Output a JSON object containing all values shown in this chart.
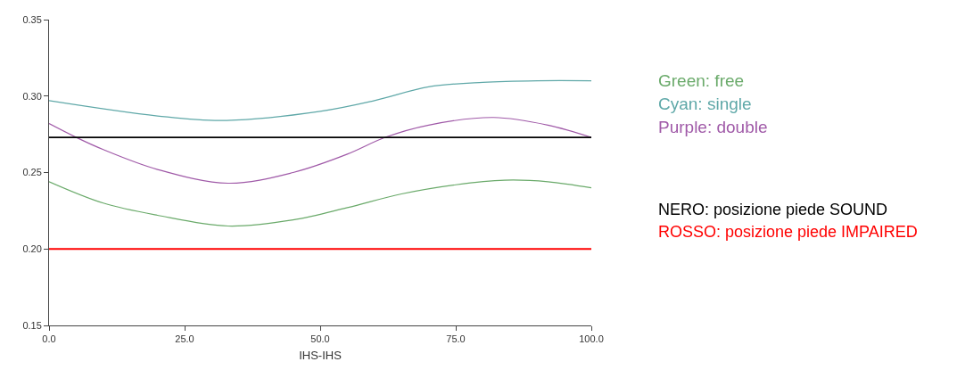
{
  "chart_data": {
    "type": "line",
    "xlabel": "IHS-IHS",
    "xlim": [
      0,
      100
    ],
    "xticks": [
      {
        "value": 0,
        "label": "0.0"
      },
      {
        "value": 25,
        "label": "25.0"
      },
      {
        "value": 50,
        "label": "50.0"
      },
      {
        "value": 75,
        "label": "75.0"
      },
      {
        "value": 100,
        "label": "100.0"
      }
    ],
    "ylim": [
      0.15,
      0.35
    ],
    "yticks": [
      {
        "value": 0.15,
        "label": "0.15"
      },
      {
        "value": 0.2,
        "label": "0.20"
      },
      {
        "value": 0.25,
        "label": "0.25"
      },
      {
        "value": 0.3,
        "label": "0.30"
      },
      {
        "value": 0.35,
        "label": "0.35"
      }
    ],
    "legend": false,
    "marker": "none",
    "line_style": "solid",
    "series": [
      {
        "name": "Green: free",
        "color": "#6aaa6a",
        "x": [
          0,
          10,
          20,
          33,
          45,
          55,
          65,
          75,
          84,
          92,
          100
        ],
        "values": [
          0.244,
          0.23,
          0.222,
          0.215,
          0.219,
          0.227,
          0.236,
          0.242,
          0.245,
          0.244,
          0.24
        ]
      },
      {
        "name": "Cyan: single",
        "color": "#5fa8a8",
        "x": [
          0,
          20,
          32,
          50,
          60,
          70,
          80,
          90,
          100
        ],
        "values": [
          0.297,
          0.287,
          0.284,
          0.29,
          0.297,
          0.306,
          0.309,
          0.31,
          0.31
        ]
      },
      {
        "name": "Purple: double",
        "color": "#a05aa8",
        "x": [
          0,
          5,
          10,
          20,
          33,
          45,
          55,
          62,
          70,
          82,
          92,
          100
        ],
        "values": [
          0.282,
          0.273,
          0.265,
          0.252,
          0.243,
          0.25,
          0.262,
          0.273,
          0.281,
          0.286,
          0.281,
          0.273
        ]
      }
    ],
    "ref_lines": [
      {
        "axis": "y",
        "value": 0.273,
        "label": "NERO: posizione piede SOUND",
        "color": "#000000"
      },
      {
        "axis": "y",
        "value": 0.2,
        "label": "ROSSO: posizione piede IMPAIRED",
        "color": "#ff0000"
      }
    ]
  }
}
